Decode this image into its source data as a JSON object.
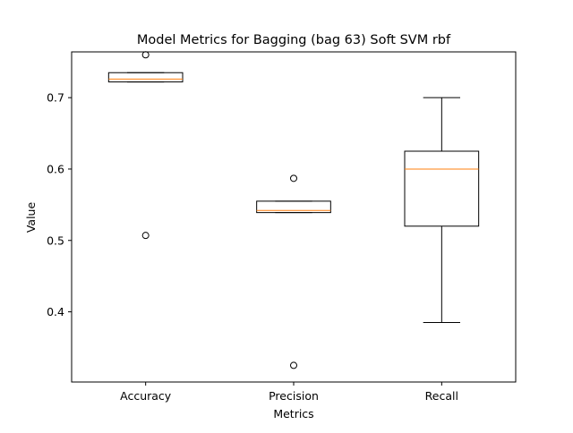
{
  "chart_data": {
    "type": "box",
    "title": "Model Metrics for Bagging (bag 63) Soft SVM rbf",
    "xlabel": "Metrics",
    "ylabel": "Value",
    "categories": [
      "Accuracy",
      "Precision",
      "Recall"
    ],
    "ylim": [
      0.3017,
      0.7641
    ],
    "yticks": [
      0.4,
      0.5,
      0.6,
      0.7
    ],
    "ytick_labels": [
      "0.4",
      "0.5",
      "0.6",
      "0.7"
    ],
    "grid": false,
    "boxes": [
      {
        "name": "Accuracy",
        "whislo": 0.722,
        "q1": 0.722,
        "median": 0.726,
        "q3": 0.735,
        "whishi": 0.735,
        "fliers": [
          0.76,
          0.507
        ]
      },
      {
        "name": "Precision",
        "whislo": 0.539,
        "q1": 0.539,
        "median": 0.542,
        "q3": 0.555,
        "whishi": 0.555,
        "fliers": [
          0.587,
          0.325
        ]
      },
      {
        "name": "Recall",
        "whislo": 0.385,
        "q1": 0.52,
        "median": 0.6,
        "q3": 0.625,
        "whishi": 0.7,
        "fliers": []
      }
    ],
    "colors": {
      "box": "#000000",
      "median": "#ff7f0e",
      "flier": "#000000"
    }
  }
}
